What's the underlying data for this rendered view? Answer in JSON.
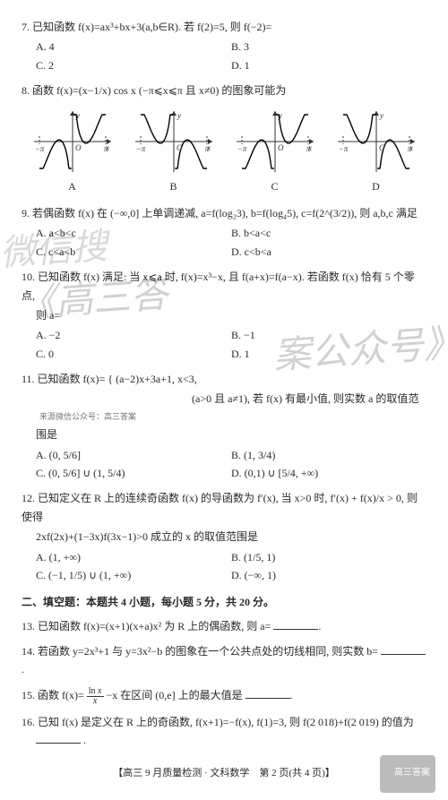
{
  "watermarks": {
    "wm1": "微信搜",
    "wm2": "《高三答",
    "wm3": "案公众号》"
  },
  "q7": {
    "stem": "7. 已知函数 f(x)=ax³+bx+3(a,b∈R). 若 f(2)=5, 则 f(−2)=",
    "A": "A. 4",
    "B": "B. 3",
    "C": "C. 2",
    "D": "D. 1"
  },
  "q8": {
    "stem": "8. 函数 f(x)=(x−1/x) cos x (−π⩽x⩽π 且 x≠0) 的图象可能为",
    "labels": {
      "A": "A",
      "B": "B",
      "C": "C",
      "D": "D"
    },
    "graph": {
      "width": 94,
      "height": 76,
      "axis_color": "#333333",
      "curve_color": "#000000",
      "tick_left": "−π",
      "tick_right": "π",
      "xlabel": "x",
      "ylabel": "y",
      "origin": "O",
      "curve_width": 1.4,
      "axis_width": 1
    }
  },
  "q9": {
    "stem": "9. 若偶函数 f(x) 在 (−∞,0] 上单调递减, a=f(log₂3), b=f(log₄5), c=f(2^(3/2)), 则 a,b,c 满足",
    "A": "A. a<b<c",
    "B": "B. b<a<c",
    "C": "C. c<a<b",
    "D": "D. c<b<a"
  },
  "q10": {
    "stem1": "10. 已知函数 f(x) 满足: 当 x⩽a 时, f(x)=x³−x, 且 f(a+x)=f(a−x). 若函数 f(x) 恰有 5 个零点,",
    "stem2": "则 a=",
    "A": "A. −2",
    "B": "B. −1",
    "C": "C. 0",
    "D": "D. 1"
  },
  "q11": {
    "stem1": "11. 已知函数 f(x)= { (a−2)x+3a+1, x<3,",
    "stem_cond": "(a>0 且 a≠1), 若 f(x) 有最小值, 则实数 a 的取值范",
    "src": "来源微信公众号：高三答案",
    "stem2": "围是",
    "A": "A. (0, 5/6]",
    "B": "B. (1, 3/4)",
    "C": "C. (0, 5/6] ∪ (1, 5/4)",
    "D": "D. (0,1) ∪ [5/4, +∞)"
  },
  "q12": {
    "stem1": "12. 已知定义在 R 上的连续奇函数 f(x) 的导函数为 f′(x), 当 x>0 时, f′(x) + f(x)/x > 0, 则使得",
    "stem2": "2xf(2x)+(1−3x)f(3x−1)>0 成立的 x 的取值范围是",
    "A": "A. (1, +∞)",
    "B": "B. (1/5, 1)",
    "C": "C. (−1, 1/5) ∪ (1, +∞)",
    "D": "D. (−∞, 1)"
  },
  "section2": "二、填空题：本题共 4 小题，每小题 5 分，共 20 分。",
  "q13": "13. 已知函数 f(x)=(x+1)(x+a)x² 为 R 上的偶函数, 则 a=",
  "q14": "14. 若函数 y=2x³+1 与 y=3x²−b 的图象在一个公共点处的切线相同, 则实数 b=",
  "q15": {
    "pre": "15. 函数 f(x)=",
    "post": "−x 在区间 (0,e] 上的最大值是"
  },
  "q16": {
    "pre": "16. 已知 f(x) 是定义在 R 上的奇函数, f(x+1)=−f(x), f(1)=3, 则 f(2 018)+f(2 019) 的值为",
    "post": "."
  },
  "footer": "【高三 9 月质量检测 · 文科数学　第 2 页(共 4 页)】",
  "corner": "高三答案"
}
